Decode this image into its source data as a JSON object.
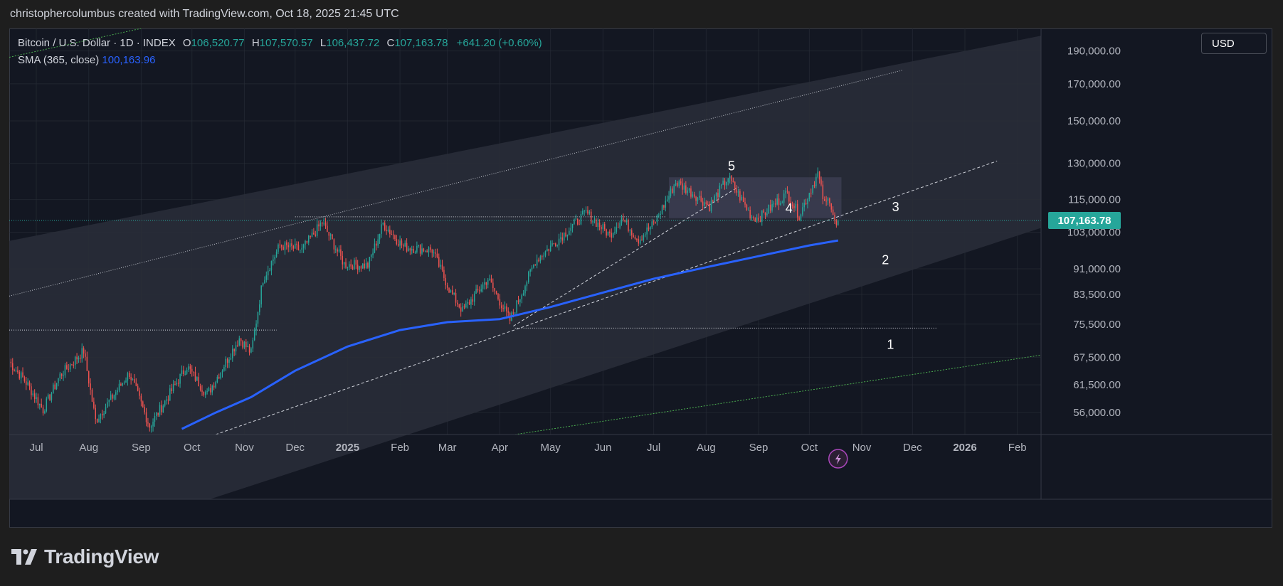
{
  "header": {
    "attribution": "christophercolumbus created with TradingView.com, Oct 18, 2025 21:45 UTC"
  },
  "legend": {
    "symbol": "Bitcoin / U.S. Dollar · 1D · INDEX",
    "open_label": "O",
    "open": "106,520.77",
    "high_label": "H",
    "high": "107,570.57",
    "low_label": "L",
    "low": "106,437.72",
    "close_label": "C",
    "close": "107,163.78",
    "change": "+641.20 (+0.60%)",
    "sma_label": "SMA (365, close)",
    "sma_value": "100,163.96"
  },
  "currency_button": "USD",
  "footer": {
    "brand": "TradingView"
  },
  "colors": {
    "background": "#131722",
    "up": "#26a69a",
    "down": "#ef5350",
    "sma": "#2962ff",
    "channel": "#2a2e39",
    "channel_line": "#e0e3eb",
    "support_green": "#4caf50",
    "last_price": "#26a69a"
  },
  "chart_data": {
    "type": "line",
    "scale": "log",
    "x_start": "2024-06-15",
    "x_end": "2026-02-15",
    "ylim": [
      52000,
      205000
    ],
    "y_ticks": [
      {
        "value": 56000,
        "label": "56,000.00"
      },
      {
        "value": 61500,
        "label": "61,500.00"
      },
      {
        "value": 67500,
        "label": "67,500.00"
      },
      {
        "value": 75500,
        "label": "75,500.00"
      },
      {
        "value": 83500,
        "label": "83,500.00"
      },
      {
        "value": 91000,
        "label": "91,000.00"
      },
      {
        "value": 103000,
        "label": "103,000.00"
      },
      {
        "value": 115000,
        "label": "115,000.00"
      },
      {
        "value": 130000,
        "label": "130,000.00"
      },
      {
        "value": 150000,
        "label": "150,000.00"
      },
      {
        "value": 170000,
        "label": "170,000.00"
      },
      {
        "value": 190000,
        "label": "190,000.00"
      }
    ],
    "x_ticks": [
      {
        "date": "2024-07-01",
        "label": "Jul"
      },
      {
        "date": "2024-08-01",
        "label": "Aug"
      },
      {
        "date": "2024-09-01",
        "label": "Sep"
      },
      {
        "date": "2024-10-01",
        "label": "Oct"
      },
      {
        "date": "2024-11-01",
        "label": "Nov"
      },
      {
        "date": "2024-12-01",
        "label": "Dec"
      },
      {
        "date": "2025-01-01",
        "label": "2025"
      },
      {
        "date": "2025-02-01",
        "label": "Feb"
      },
      {
        "date": "2025-03-01",
        "label": "Mar"
      },
      {
        "date": "2025-04-01",
        "label": "Apr"
      },
      {
        "date": "2025-05-01",
        "label": "May"
      },
      {
        "date": "2025-06-01",
        "label": "Jun"
      },
      {
        "date": "2025-07-01",
        "label": "Jul"
      },
      {
        "date": "2025-08-01",
        "label": "Aug"
      },
      {
        "date": "2025-09-01",
        "label": "Sep"
      },
      {
        "date": "2025-10-01",
        "label": "Oct"
      },
      {
        "date": "2025-11-01",
        "label": "Nov"
      },
      {
        "date": "2025-12-01",
        "label": "Dec"
      },
      {
        "date": "2026-01-01",
        "label": "2026"
      },
      {
        "date": "2026-02-01",
        "label": "Feb"
      }
    ],
    "price_path": [
      [
        "2024-06-15",
        66500
      ],
      [
        "2024-06-25",
        62000
      ],
      [
        "2024-07-05",
        56500
      ],
      [
        "2024-07-15",
        63500
      ],
      [
        "2024-07-29",
        69000
      ],
      [
        "2024-08-05",
        54500
      ],
      [
        "2024-08-25",
        64000
      ],
      [
        "2024-09-06",
        53500
      ],
      [
        "2024-09-28",
        65500
      ],
      [
        "2024-10-10",
        59500
      ],
      [
        "2024-10-29",
        72000
      ],
      [
        "2024-11-05",
        68500
      ],
      [
        "2024-11-12",
        88000
      ],
      [
        "2024-11-22",
        98500
      ],
      [
        "2024-12-05",
        97000
      ],
      [
        "2024-12-17",
        106500
      ],
      [
        "2024-12-30",
        92500
      ],
      [
        "2025-01-13",
        92000
      ],
      [
        "2025-01-22",
        106000
      ],
      [
        "2025-02-03",
        98000
      ],
      [
        "2025-02-20",
        97000
      ],
      [
        "2025-03-03",
        84000
      ],
      [
        "2025-03-10",
        79000
      ],
      [
        "2025-03-25",
        88000
      ],
      [
        "2025-04-07",
        76500
      ],
      [
        "2025-04-22",
        93500
      ],
      [
        "2025-05-10",
        103000
      ],
      [
        "2025-05-22",
        110000
      ],
      [
        "2025-06-05",
        102000
      ],
      [
        "2025-06-12",
        108000
      ],
      [
        "2025-06-22",
        100500
      ],
      [
        "2025-07-01",
        106000
      ],
      [
        "2025-07-10",
        116500
      ],
      [
        "2025-07-14",
        122000
      ],
      [
        "2025-07-25",
        117000
      ],
      [
        "2025-08-03",
        112500
      ],
      [
        "2025-08-14",
        124000
      ],
      [
        "2025-08-28",
        108500
      ],
      [
        "2025-09-01",
        108000
      ],
      [
        "2025-09-18",
        117500
      ],
      [
        "2025-09-25",
        109000
      ],
      [
        "2025-10-06",
        125500
      ],
      [
        "2025-10-10",
        113000
      ],
      [
        "2025-10-13",
        115500
      ],
      [
        "2025-10-17",
        104500
      ],
      [
        "2025-10-18",
        107163.78
      ]
    ],
    "series": [
      {
        "name": "SMA (365, close)",
        "points": [
          [
            "2024-09-25",
            53000
          ],
          [
            "2024-10-15",
            56000
          ],
          [
            "2024-11-05",
            59000
          ],
          [
            "2024-12-01",
            64500
          ],
          [
            "2025-01-01",
            70000
          ],
          [
            "2025-02-01",
            74000
          ],
          [
            "2025-03-01",
            76000
          ],
          [
            "2025-04-01",
            76800
          ],
          [
            "2025-05-01",
            80000
          ],
          [
            "2025-06-01",
            84000
          ],
          [
            "2025-07-01",
            88000
          ],
          [
            "2025-08-01",
            91500
          ],
          [
            "2025-09-01",
            95000
          ],
          [
            "2025-10-01",
            98500
          ],
          [
            "2025-10-18",
            100163.96
          ]
        ]
      }
    ],
    "last_price": {
      "value": 107163.78,
      "label": "107,163.78"
    },
    "annotations": [
      {
        "text": "5",
        "date": "2025-08-16",
        "price": 127000
      },
      {
        "text": "4",
        "date": "2025-09-19",
        "price": 110000
      },
      {
        "text": "3",
        "date": "2025-11-21",
        "price": 110500
      },
      {
        "text": "2",
        "date": "2025-11-15",
        "price": 92500
      },
      {
        "text": "1",
        "date": "2025-11-18",
        "price": 69500
      }
    ],
    "channel": {
      "upper": [
        [
          "2024-06-15",
          100000
        ],
        [
          "2026-02-15",
          200000
        ]
      ],
      "lower": [
        [
          "2024-06-15",
          33500
        ],
        [
          "2026-02-15",
          104500
        ]
      ],
      "midline": [
        [
          "2024-06-15",
          83000
        ],
        [
          "2025-11-25",
          178000
        ]
      ]
    },
    "horizontal_levels": [
      {
        "price": 108500,
        "from": "2024-12-01",
        "to": "2025-07-08"
      },
      {
        "price": 74000,
        "from": "2024-06-15",
        "to": "2024-11-20"
      },
      {
        "price": 74500,
        "from": "2025-04-10",
        "to": "2025-12-15"
      }
    ],
    "trendlines": [
      {
        "from": [
          "2024-10-15",
          52000
        ],
        "to": [
          "2026-01-20",
          131000
        ]
      },
      {
        "from": [
          "2025-04-09",
          75000
        ],
        "to": [
          "2025-08-20",
          120000
        ]
      }
    ],
    "range_box": {
      "from": "2025-07-10",
      "to": "2025-10-20",
      "low": 108000,
      "high": 124000
    },
    "green_support": [
      {
        "from": [
          "2024-06-15",
          186000
        ],
        "to": [
          "2024-09-01",
          205000
        ]
      },
      {
        "from": [
          "2025-04-10",
          52000
        ],
        "to": [
          "2026-02-15",
          68000
        ]
      }
    ]
  }
}
